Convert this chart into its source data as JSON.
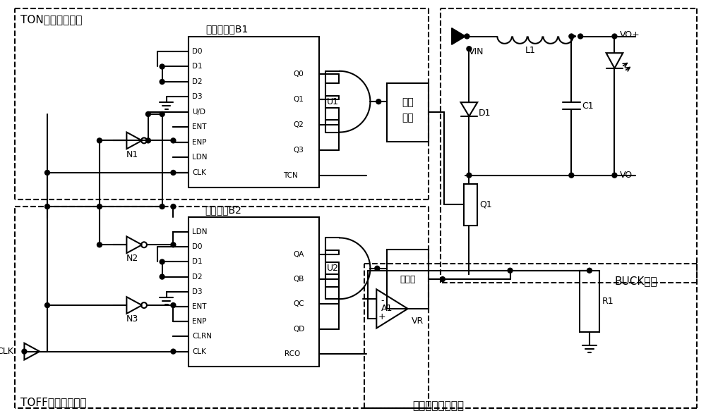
{
  "bg_color": "#ffffff",
  "line_color": "#000000",
  "fig_width": 10.0,
  "fig_height": 5.93,
  "ton_label": "TON时间均衡模块",
  "toff_label": "TOFF时间控制模块",
  "buck_label": "BUCK电路",
  "avg_label": "平均电流采样模块",
  "b1_label": "加减计数器B1",
  "b2_label": "加计数器B2"
}
